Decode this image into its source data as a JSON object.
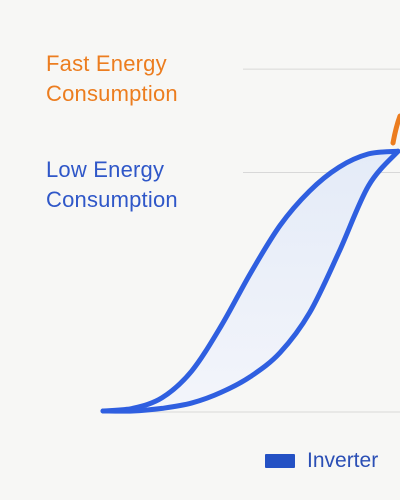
{
  "labels": {
    "fast_line1": "Fast Energy",
    "fast_line2": "Consumption",
    "low_line1": "Low Energy",
    "low_line2": "Consumption"
  },
  "legend": {
    "label": "Inverter"
  },
  "colors": {
    "fast": "#ec7d1f",
    "low": "#2f57c8",
    "line": "#2f5fe0",
    "swatch": "#2451c4",
    "fill_top": "#e4ebf8",
    "fill_bottom": "#f3f5fa",
    "gridline": "#d8d8d8"
  },
  "chart_data": {
    "type": "line",
    "title": "",
    "xlabel": "",
    "ylabel": "",
    "grid": true,
    "legend_placement": "bottom-right",
    "xlim": [
      0,
      1
    ],
    "ylim": [
      0,
      1
    ],
    "series": [
      {
        "name": "Inverter",
        "curve": "upper",
        "x": [
          0,
          0.1,
          0.2,
          0.3,
          0.4,
          0.5,
          0.6,
          0.7,
          0.8,
          0.9,
          1.0
        ],
        "y": [
          0,
          0.01,
          0.05,
          0.15,
          0.32,
          0.52,
          0.7,
          0.83,
          0.92,
          0.97,
          0.98
        ]
      },
      {
        "name": "",
        "curve": "lower",
        "x": [
          0,
          0.1,
          0.2,
          0.3,
          0.4,
          0.5,
          0.6,
          0.7,
          0.8,
          0.9,
          1.0
        ],
        "y": [
          0,
          0.0,
          0.01,
          0.03,
          0.07,
          0.13,
          0.22,
          0.37,
          0.6,
          0.85,
          0.98
        ]
      }
    ],
    "reference_levels": [
      {
        "name": "fast",
        "y": 1.29
      },
      {
        "name": "low",
        "y": 0.9
      }
    ]
  }
}
